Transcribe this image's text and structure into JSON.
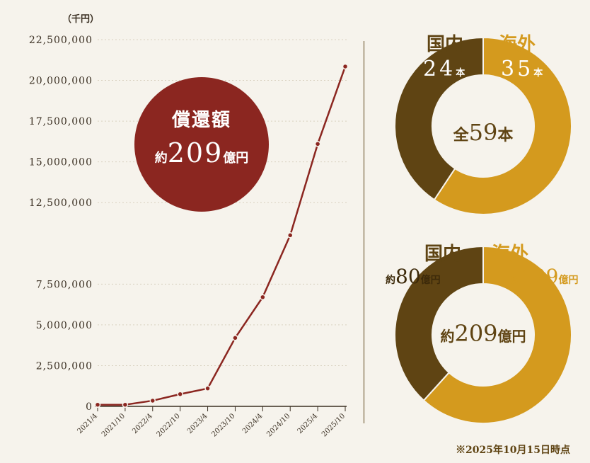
{
  "chart_data": {
    "type": "line",
    "unit_label": "（千円）",
    "x": [
      "2021/4",
      "2021/10",
      "2022/4",
      "2022/10",
      "2023/4",
      "2023/10",
      "2024/4",
      "2024/10",
      "2025/4",
      "2025/10"
    ],
    "series": [
      {
        "values": [
          100000,
          100000,
          350000,
          750000,
          1100000,
          4200000,
          6700000,
          10500000,
          16100000,
          20850000
        ]
      }
    ],
    "yticks": [
      0,
      2500000,
      5000000,
      7500000,
      12500000,
      15000000,
      17500000,
      20000000,
      22500000
    ],
    "ytick_labels": [
      "0",
      "2,500,000",
      "5,000,000",
      "7,500,000",
      "12,500,000",
      "15,000,000",
      "17,500,000",
      "20,000,000",
      "22,500,000"
    ],
    "ylim": [
      0,
      22500000
    ],
    "line_color": "#8b2620",
    "grid": true
  },
  "badge": {
    "title": "償還額",
    "prefix": "約",
    "value": "209",
    "suffix": "億円"
  },
  "donut_count": {
    "domestic": {
      "label": "国内",
      "value": "24",
      "unit": "本",
      "count": 24
    },
    "overseas": {
      "label": "海外",
      "value": "35",
      "unit": "本",
      "count": 35
    },
    "center": {
      "prefix": "全",
      "value": "59",
      "suffix": "本"
    }
  },
  "donut_amount": {
    "domestic": {
      "label": "国内",
      "prefix": "約",
      "value": "80",
      "unit": "億円",
      "amount": 80
    },
    "overseas": {
      "label": "海外",
      "prefix": "約",
      "value": "129",
      "unit": "億円",
      "amount": 129
    },
    "center": {
      "prefix": "約",
      "value": "209",
      "suffix": "億円"
    }
  },
  "colors": {
    "domestic": "#5f4413",
    "overseas": "#d49a1e",
    "accent": "#8b2620"
  },
  "note": "※2025年10月15日時点"
}
